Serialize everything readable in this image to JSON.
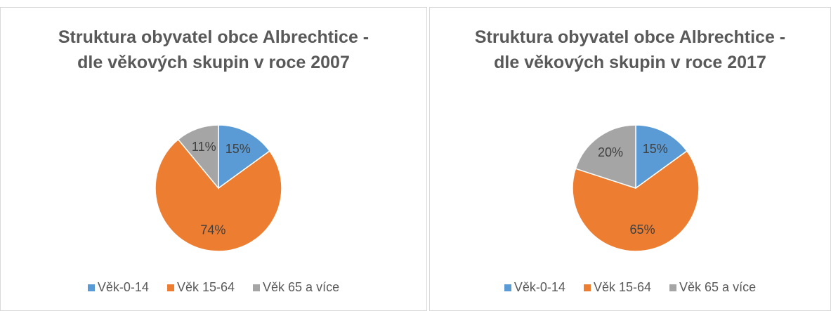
{
  "chart_data": [
    {
      "type": "pie",
      "title": "Struktura obyvatel obce Albrechtice - dle věkových skupin v roce 2007",
      "categories": [
        "Věk-0-14",
        "Věk 15-64",
        "Věk 65 a více"
      ],
      "values": [
        15,
        74,
        11
      ],
      "value_labels": [
        "15%",
        "74%",
        "11%"
      ],
      "colors": [
        "#5b9bd5",
        "#ed7d31",
        "#a5a5a5"
      ],
      "legend": "bottom"
    },
    {
      "type": "pie",
      "title": "Struktura obyvatel obce Albrechtice - dle věkových skupin v roce 2017",
      "categories": [
        "Věk-0-14",
        "Věk 15-64",
        "Věk 65 a více"
      ],
      "values": [
        15,
        65,
        20
      ],
      "value_labels": [
        "15%",
        "65%",
        "20%"
      ],
      "colors": [
        "#5b9bd5",
        "#ed7d31",
        "#a5a5a5"
      ],
      "legend": "bottom"
    }
  ]
}
